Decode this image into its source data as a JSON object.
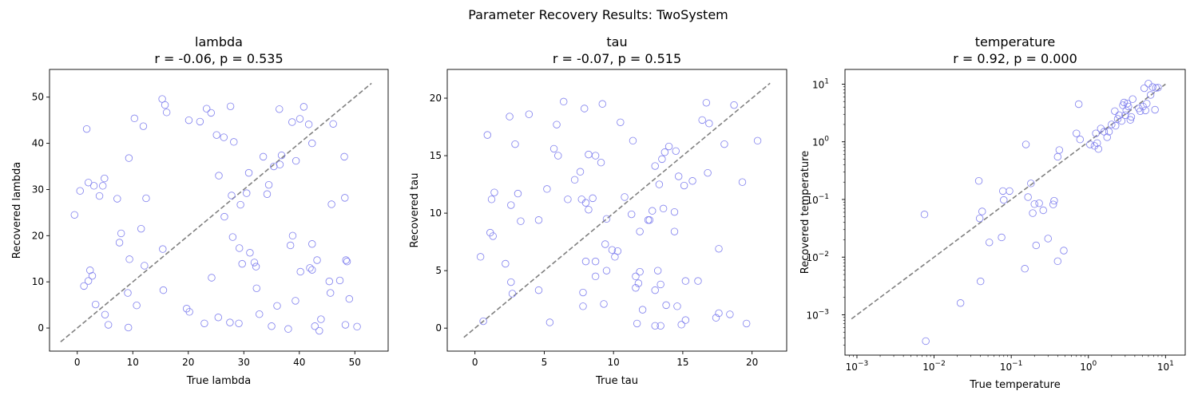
{
  "figure": {
    "suptitle": "Parameter Recovery Results: TwoSystem"
  },
  "chart_data": [
    {
      "type": "scatter",
      "title_line1": "lambda",
      "title_line2": "r = -0.06, p = 0.535",
      "xlabel": "True lambda",
      "ylabel": "Recovered lambda",
      "xscale": "linear",
      "yscale": "linear",
      "xlim": [
        -5,
        56
      ],
      "ylim": [
        -5,
        56
      ],
      "xticks": [
        0,
        10,
        20,
        30,
        40,
        50
      ],
      "yticks": [
        0,
        10,
        20,
        30,
        40,
        50
      ],
      "xtick_labels": [
        "0",
        "10",
        "20",
        "30",
        "40",
        "50"
      ],
      "ytick_labels": [
        "0",
        "10",
        "20",
        "30",
        "40",
        "50"
      ],
      "identity_line": [
        -3,
        53
      ],
      "marker_color": "#7f7fee",
      "line_color": "#808080",
      "points": [
        [
          -0.5,
          24.5
        ],
        [
          0.5,
          29.7
        ],
        [
          1.2,
          9.1
        ],
        [
          1.7,
          43.1
        ],
        [
          2,
          31.5
        ],
        [
          2,
          10.2
        ],
        [
          2.3,
          12.5
        ],
        [
          2.7,
          11.3
        ],
        [
          3,
          30.8
        ],
        [
          3.3,
          5.1
        ],
        [
          4,
          28.6
        ],
        [
          4.6,
          30.8
        ],
        [
          4.9,
          32.4
        ],
        [
          5,
          2.9
        ],
        [
          5.6,
          0.7
        ],
        [
          7.2,
          28
        ],
        [
          7.6,
          18.5
        ],
        [
          7.9,
          20.5
        ],
        [
          9.1,
          7.6
        ],
        [
          9.2,
          0.1
        ],
        [
          9.3,
          36.8
        ],
        [
          9.4,
          14.9
        ],
        [
          10.3,
          45.4
        ],
        [
          10.7,
          4.9
        ],
        [
          11.5,
          21.5
        ],
        [
          11.9,
          43.7
        ],
        [
          12.1,
          13.5
        ],
        [
          12.4,
          28.1
        ],
        [
          15.3,
          49.6
        ],
        [
          15.4,
          17.1
        ],
        [
          15.5,
          8.2
        ],
        [
          15.8,
          48.3
        ],
        [
          16.1,
          46.7
        ],
        [
          19.7,
          4.2
        ],
        [
          20.1,
          45
        ],
        [
          20.2,
          3.5
        ],
        [
          22.1,
          44.7
        ],
        [
          22.9,
          1
        ],
        [
          23.3,
          47.5
        ],
        [
          24.1,
          46.6
        ],
        [
          24.2,
          10.9
        ],
        [
          25.1,
          41.8
        ],
        [
          25.4,
          2.3
        ],
        [
          25.5,
          33
        ],
        [
          26.4,
          41.3
        ],
        [
          26.5,
          24.1
        ],
        [
          27.5,
          1.2
        ],
        [
          27.6,
          48
        ],
        [
          27.8,
          28.7
        ],
        [
          28,
          19.7
        ],
        [
          28.2,
          40.3
        ],
        [
          29.1,
          1
        ],
        [
          29.2,
          17.3
        ],
        [
          29.4,
          26.7
        ],
        [
          29.7,
          13.9
        ],
        [
          30.5,
          29.2
        ],
        [
          30.9,
          33.6
        ],
        [
          31.1,
          16.3
        ],
        [
          31.9,
          14.2
        ],
        [
          32.2,
          13.3
        ],
        [
          32.3,
          8.6
        ],
        [
          32.8,
          3
        ],
        [
          33.5,
          37.1
        ],
        [
          34.2,
          29
        ],
        [
          34.5,
          31
        ],
        [
          35,
          0.4
        ],
        [
          35.4,
          35
        ],
        [
          36,
          4.8
        ],
        [
          36.4,
          47.4
        ],
        [
          36.5,
          35.4
        ],
        [
          36.8,
          37.4
        ],
        [
          38,
          -0.2
        ],
        [
          38.4,
          17.9
        ],
        [
          38.7,
          44.6
        ],
        [
          38.8,
          20
        ],
        [
          39.3,
          5.9
        ],
        [
          39.4,
          36.2
        ],
        [
          40.1,
          45.3
        ],
        [
          40.2,
          12.2
        ],
        [
          40.8,
          47.9
        ],
        [
          41.7,
          44.1
        ],
        [
          41.9,
          13
        ],
        [
          42.3,
          12.6
        ],
        [
          42.3,
          18.2
        ],
        [
          42.3,
          40
        ],
        [
          42.8,
          0.4
        ],
        [
          43.2,
          14.7
        ],
        [
          43.6,
          -0.6
        ],
        [
          43.9,
          1.9
        ],
        [
          45.4,
          10.1
        ],
        [
          45.6,
          7.6
        ],
        [
          45.8,
          26.8
        ],
        [
          46.1,
          44.2
        ],
        [
          47.3,
          10.3
        ],
        [
          48.1,
          37.1
        ],
        [
          48.2,
          28.2
        ],
        [
          48.3,
          0.7
        ],
        [
          48.4,
          14.7
        ],
        [
          48.6,
          14.4
        ],
        [
          49,
          6.3
        ],
        [
          50.4,
          0.3
        ]
      ]
    },
    {
      "type": "scatter",
      "title_line1": "tau",
      "title_line2": "r = -0.07, p = 0.515",
      "xlabel": "True tau",
      "ylabel": "Recovered tau",
      "xscale": "linear",
      "yscale": "linear",
      "xlim": [
        -2,
        22.5
      ],
      "ylim": [
        -2,
        22.5
      ],
      "xticks": [
        0,
        5,
        10,
        15,
        20
      ],
      "yticks": [
        0,
        5,
        10,
        15,
        20
      ],
      "xtick_labels": [
        "0",
        "5",
        "10",
        "15",
        "20"
      ],
      "ytick_labels": [
        "0",
        "5",
        "10",
        "15",
        "20"
      ],
      "identity_line": [
        -0.8,
        21.3
      ],
      "marker_color": "#7f7fee",
      "line_color": "#808080",
      "points": [
        [
          0.4,
          6.2
        ],
        [
          0.6,
          0.6
        ],
        [
          0.9,
          16.8
        ],
        [
          1.1,
          8.3
        ],
        [
          1.2,
          11.2
        ],
        [
          1.3,
          8
        ],
        [
          1.4,
          11.8
        ],
        [
          2.2,
          5.6
        ],
        [
          2.5,
          18.4
        ],
        [
          2.6,
          10.7
        ],
        [
          2.6,
          4
        ],
        [
          2.7,
          3
        ],
        [
          2.9,
          16
        ],
        [
          3.1,
          11.7
        ],
        [
          3.3,
          9.3
        ],
        [
          3.9,
          18.6
        ],
        [
          4.6,
          3.3
        ],
        [
          4.6,
          9.4
        ],
        [
          5.2,
          12.1
        ],
        [
          5.4,
          0.5
        ],
        [
          5.7,
          15.6
        ],
        [
          5.9,
          17.7
        ],
        [
          6,
          15
        ],
        [
          6.4,
          19.7
        ],
        [
          6.7,
          11.2
        ],
        [
          7.2,
          12.9
        ],
        [
          7.6,
          13.6
        ],
        [
          7.7,
          11.2
        ],
        [
          7.8,
          1.9
        ],
        [
          7.8,
          3.1
        ],
        [
          7.9,
          19.1
        ],
        [
          8,
          10.9
        ],
        [
          8,
          5.8
        ],
        [
          8.2,
          15.1
        ],
        [
          8.2,
          10.3
        ],
        [
          8.5,
          11.3
        ],
        [
          8.7,
          15
        ],
        [
          8.7,
          4.5
        ],
        [
          8.7,
          5.8
        ],
        [
          9.1,
          14.4
        ],
        [
          9.2,
          19.5
        ],
        [
          9.3,
          2.1
        ],
        [
          9.4,
          7.3
        ],
        [
          9.5,
          5
        ],
        [
          9.5,
          9.5
        ],
        [
          9.9,
          6.8
        ],
        [
          10.1,
          6.2
        ],
        [
          10.3,
          6.7
        ],
        [
          10.5,
          17.9
        ],
        [
          10.8,
          11.4
        ],
        [
          11.3,
          9.9
        ],
        [
          11.4,
          16.3
        ],
        [
          11.6,
          3.5
        ],
        [
          11.6,
          4.5
        ],
        [
          11.7,
          0.4
        ],
        [
          11.8,
          3.9
        ],
        [
          11.9,
          4.9
        ],
        [
          11.9,
          8.4
        ],
        [
          12.1,
          1.6
        ],
        [
          12.5,
          9.4
        ],
        [
          12.6,
          9.4
        ],
        [
          12.8,
          10.2
        ],
        [
          13,
          0.2
        ],
        [
          13,
          3.3
        ],
        [
          13,
          14.1
        ],
        [
          13.2,
          5
        ],
        [
          13.3,
          12.5
        ],
        [
          13.4,
          0.2
        ],
        [
          13.4,
          3.8
        ],
        [
          13.5,
          14.7
        ],
        [
          13.6,
          10.4
        ],
        [
          13.7,
          15.3
        ],
        [
          13.8,
          2
        ],
        [
          14,
          15.8
        ],
        [
          14.4,
          8.4
        ],
        [
          14.4,
          10.1
        ],
        [
          14.5,
          15.4
        ],
        [
          14.6,
          1.9
        ],
        [
          14.7,
          13.2
        ],
        [
          14.9,
          0.3
        ],
        [
          15.1,
          12.4
        ],
        [
          15.2,
          0.7
        ],
        [
          15.2,
          4.1
        ],
        [
          15.7,
          12.8
        ],
        [
          16.1,
          4.1
        ],
        [
          16.4,
          18.1
        ],
        [
          16.7,
          19.6
        ],
        [
          16.8,
          13.5
        ],
        [
          16.9,
          17.8
        ],
        [
          17.4,
          0.9
        ],
        [
          17.6,
          6.9
        ],
        [
          17.6,
          1.3
        ],
        [
          18,
          16
        ],
        [
          18.4,
          1.2
        ],
        [
          18.7,
          19.4
        ],
        [
          19.3,
          12.7
        ],
        [
          19.6,
          0.4
        ],
        [
          20.4,
          16.3
        ]
      ]
    },
    {
      "type": "scatter",
      "title_line1": "temperature",
      "title_line2": "r = 0.92, p = 0.000",
      "xlabel": "True temperature",
      "ylabel": "Recovered temperature",
      "xscale": "log",
      "yscale": "log",
      "xlim": [
        0.0007,
        18
      ],
      "ylim": [
        0.0002,
        18
      ],
      "xticks": [
        0.001,
        0.01,
        0.1,
        1,
        10
      ],
      "yticks": [
        0.001,
        0.01,
        0.1,
        1,
        10
      ],
      "tick_base": "10",
      "tick_exponents": [
        "−3",
        "−2",
        "−1",
        "0",
        "1"
      ],
      "identity_line": [
        0.00085,
        10
      ],
      "marker_color": "#7f7fee",
      "line_color": "#808080",
      "points": [
        [
          0.0075,
          0.055
        ],
        [
          0.0078,
          0.00035
        ],
        [
          0.022,
          0.0016
        ],
        [
          0.038,
          0.21
        ],
        [
          0.039,
          0.047
        ],
        [
          0.04,
          0.0038
        ],
        [
          0.042,
          0.062
        ],
        [
          0.052,
          0.018
        ],
        [
          0.075,
          0.022
        ],
        [
          0.078,
          0.14
        ],
        [
          0.08,
          0.098
        ],
        [
          0.095,
          0.14
        ],
        [
          0.15,
          0.0063
        ],
        [
          0.155,
          0.9
        ],
        [
          0.165,
          0.11
        ],
        [
          0.18,
          0.19
        ],
        [
          0.19,
          0.058
        ],
        [
          0.2,
          0.083
        ],
        [
          0.21,
          0.016
        ],
        [
          0.23,
          0.086
        ],
        [
          0.26,
          0.065
        ],
        [
          0.3,
          0.021
        ],
        [
          0.35,
          0.082
        ],
        [
          0.36,
          0.095
        ],
        [
          0.4,
          0.0085
        ],
        [
          0.4,
          0.55
        ],
        [
          0.42,
          0.72
        ],
        [
          0.48,
          0.013
        ],
        [
          0.7,
          1.4
        ],
        [
          0.75,
          4.5
        ],
        [
          0.78,
          1.1
        ],
        [
          1.05,
          0.9
        ],
        [
          1.2,
          0.85
        ],
        [
          1.25,
          1.4
        ],
        [
          1.3,
          0.95
        ],
        [
          1.35,
          0.75
        ],
        [
          1.45,
          1.7
        ],
        [
          1.6,
          1.5
        ],
        [
          1.75,
          1.2
        ],
        [
          1.85,
          1.5
        ],
        [
          2,
          2
        ],
        [
          2.2,
          3.4
        ],
        [
          2.25,
          1.9
        ],
        [
          2.4,
          2.5
        ],
        [
          2.5,
          2.9
        ],
        [
          2.7,
          2.3
        ],
        [
          2.8,
          4.3
        ],
        [
          2.9,
          4.8
        ],
        [
          3,
          2.9
        ],
        [
          3.1,
          3.5
        ],
        [
          3.2,
          4.6
        ],
        [
          3.3,
          4.1
        ],
        [
          3.5,
          2.4
        ],
        [
          3.6,
          2.7
        ],
        [
          3.75,
          5.5
        ],
        [
          4.5,
          3.8
        ],
        [
          4.7,
          3.4
        ],
        [
          5.1,
          4.1
        ],
        [
          5.3,
          8.5
        ],
        [
          5.5,
          3.5
        ],
        [
          5.7,
          4.6
        ],
        [
          6,
          10.2
        ],
        [
          6.4,
          6.5
        ],
        [
          6.8,
          8.9
        ],
        [
          7.3,
          3.6
        ],
        [
          7.5,
          8.6
        ],
        [
          8,
          8.7
        ]
      ]
    }
  ]
}
